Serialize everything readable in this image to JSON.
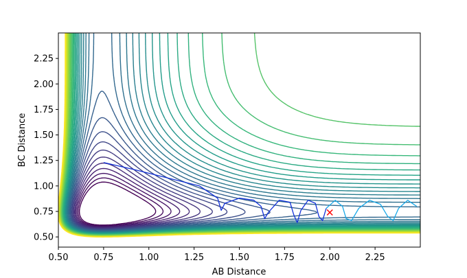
{
  "chart_data": {
    "type": "contour",
    "xlabel": "AB Distance",
    "ylabel": "BC Distance",
    "xlim": [
      0.5,
      2.5
    ],
    "ylim": [
      0.4,
      2.5
    ],
    "xticks": [
      {
        "v": 0.5,
        "label": "0.50"
      },
      {
        "v": 0.75,
        "label": "0.75"
      },
      {
        "v": 1.0,
        "label": "1.00"
      },
      {
        "v": 1.25,
        "label": "1.25"
      },
      {
        "v": 1.5,
        "label": "1.50"
      },
      {
        "v": 1.75,
        "label": "1.75"
      },
      {
        "v": 2.0,
        "label": "2.00"
      },
      {
        "v": 2.25,
        "label": "2.25"
      }
    ],
    "yticks": [
      {
        "v": 0.5,
        "label": "0.50"
      },
      {
        "v": 0.75,
        "label": "0.75"
      },
      {
        "v": 1.0,
        "label": "1.00"
      },
      {
        "v": 1.25,
        "label": "1.25"
      },
      {
        "v": 1.5,
        "label": "1.50"
      },
      {
        "v": 1.75,
        "label": "1.75"
      },
      {
        "v": 2.0,
        "label": "2.00"
      },
      {
        "v": 2.25,
        "label": "2.25"
      }
    ],
    "grid": false,
    "colormap": "viridis",
    "contour_levels": 34,
    "trajectory": {
      "colors": [
        "#1030d8",
        "#18a8e8"
      ],
      "start": [
        0.75,
        1.23
      ],
      "path": [
        [
          0.75,
          1.23
        ],
        [
          0.92,
          1.16
        ],
        [
          1.1,
          1.08
        ],
        [
          1.28,
          1.0
        ],
        [
          1.38,
          0.88
        ],
        [
          1.4,
          0.76
        ],
        [
          1.42,
          0.83
        ],
        [
          1.5,
          0.88
        ],
        [
          1.58,
          0.86
        ],
        [
          1.62,
          0.8
        ],
        [
          1.64,
          0.68
        ],
        [
          1.66,
          0.74
        ],
        [
          1.72,
          0.86
        ],
        [
          1.78,
          0.84
        ],
        [
          1.8,
          0.72
        ],
        [
          1.82,
          0.64
        ],
        [
          1.84,
          0.76
        ],
        [
          1.88,
          0.86
        ],
        [
          1.92,
          0.83
        ],
        [
          1.94,
          0.7
        ],
        [
          1.96,
          0.66
        ],
        [
          1.98,
          0.78
        ],
        [
          2.03,
          0.86
        ],
        [
          2.07,
          0.8
        ],
        [
          2.09,
          0.68
        ],
        [
          2.12,
          0.66
        ],
        [
          2.16,
          0.78
        ],
        [
          2.22,
          0.86
        ],
        [
          2.28,
          0.82
        ],
        [
          2.32,
          0.7
        ],
        [
          2.35,
          0.66
        ],
        [
          2.38,
          0.78
        ],
        [
          2.43,
          0.86
        ],
        [
          2.48,
          0.8
        ]
      ]
    },
    "marker": {
      "x": 2.0,
      "y": 0.74,
      "symbol": "x",
      "color": "#ff0000"
    }
  }
}
